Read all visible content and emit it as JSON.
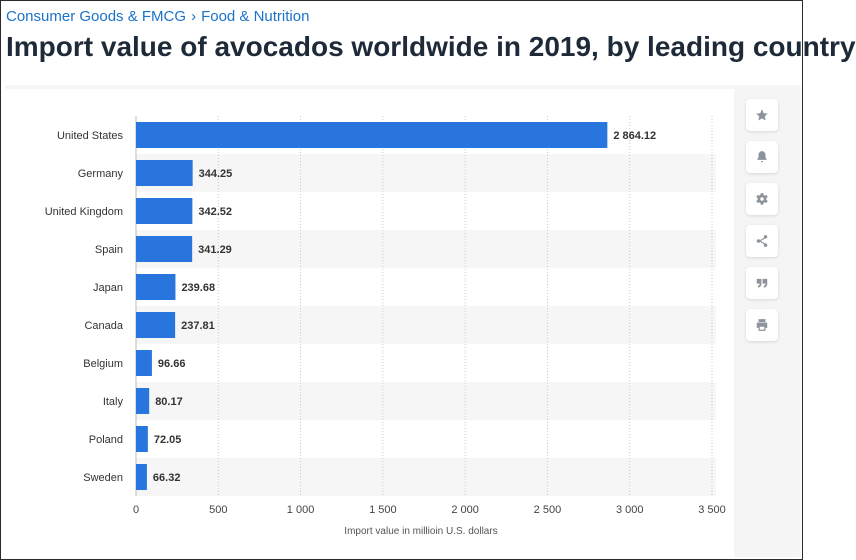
{
  "breadcrumb": {
    "items": [
      "Consumer Goods & FMCG",
      "Food & Nutrition"
    ],
    "separator": "›"
  },
  "title": "Import value of avocados worldwide in 2019, by leading country",
  "colors": {
    "bar": "#2876dd",
    "link": "#1a73c9",
    "title": "#1e2a38"
  },
  "toolbar": {
    "icons": [
      "star-icon",
      "bell-icon",
      "gear-icon",
      "share-icon",
      "quote-icon",
      "print-icon"
    ]
  },
  "chart_data": {
    "type": "bar",
    "orientation": "horizontal",
    "categories": [
      "United States",
      "Germany",
      "United Kingdom",
      "Spain",
      "Japan",
      "Canada",
      "Belgium",
      "Italy",
      "Poland",
      "Sweden"
    ],
    "values": [
      2864.12,
      344.25,
      342.52,
      341.29,
      239.68,
      237.81,
      96.66,
      80.17,
      72.05,
      66.32
    ],
    "data_labels": [
      "2 864.12",
      "344.25",
      "342.52",
      "341.29",
      "239.68",
      "237.81",
      "96.66",
      "80.17",
      "72.05",
      "66.32"
    ],
    "xlabel": "Import value in millioin U.S. dollars",
    "ylabel": "",
    "xlim": [
      0,
      3500
    ],
    "xticks": [
      0,
      500,
      1000,
      1500,
      2000,
      2500,
      3000,
      3500
    ],
    "xtick_labels": [
      "0",
      "500",
      "1 000",
      "1 500",
      "2 000",
      "2 500",
      "3 000",
      "3 500"
    ],
    "grid": true
  }
}
